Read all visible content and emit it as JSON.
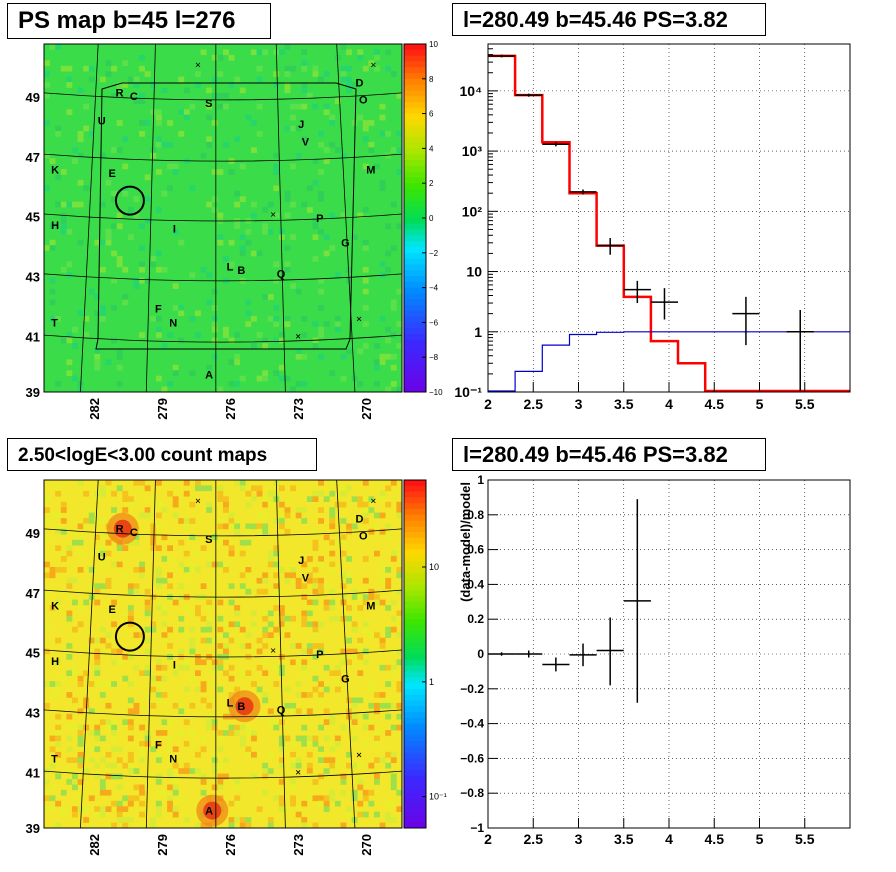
{
  "panels": {
    "ps_map_title": "PS map b=45 l=276",
    "count_map_title": "2.50<logE<3.00 count maps",
    "spectrum_title": "l=280.49 b=45.46 PS=3.82",
    "residual_title": "l=280.49 b=45.46 PS=3.82"
  },
  "colors": {
    "data": "#000000",
    "model": "#ff0000",
    "background_model": "#0000cc",
    "grid": "#000000"
  },
  "chart_data": [
    {
      "type": "heatmap",
      "title": "PS map b=45 l=276",
      "xticks": [
        "282",
        "279",
        "276",
        "273",
        "270"
      ],
      "yticks": [
        "49",
        "47",
        "45",
        "43",
        "41",
        "39"
      ],
      "colorbar": {
        "scale": "linear",
        "range": [
          -10,
          10
        ],
        "ticks": [
          "10",
          "8",
          "6",
          "4",
          "2",
          "0",
          "−2",
          "−4",
          "−6",
          "−8",
          "−10"
        ]
      },
      "sources": [
        "R",
        "C",
        "S",
        "D",
        "O",
        "U",
        "J",
        "V",
        "K",
        "E",
        "M",
        "H",
        "I",
        "P",
        "G",
        "L",
        "B",
        "Q",
        "F",
        "N",
        "T",
        "A"
      ]
    },
    {
      "type": "line",
      "title": "l=280.49 b=45.46 PS=3.82",
      "xlim": [
        2,
        6
      ],
      "yscale": "log",
      "ylim": [
        0.1,
        60000
      ],
      "xticks": [
        "2",
        "2.5",
        "3",
        "3.5",
        "4",
        "4.5",
        "5",
        "5.5"
      ],
      "yticks": [
        "10⁻¹",
        "1",
        "10",
        "10²",
        "10³",
        "10⁴"
      ],
      "grid": true,
      "series": [
        {
          "kind": "step",
          "color": "red",
          "edges": [
            2,
            2.3,
            2.6,
            2.9,
            3.2,
            3.5,
            3.8,
            4.1,
            4.4,
            6
          ],
          "values": [
            38000,
            8500,
            1400,
            200,
            27,
            3.8,
            0.7,
            0.3,
            0.1
          ]
        },
        {
          "kind": "step",
          "color": "blue",
          "edges": [
            2,
            2.3,
            2.6,
            2.9,
            3.2,
            3.5,
            3.8,
            4.1,
            4.4,
            6
          ],
          "values": [
            0.05,
            0.22,
            0.6,
            0.9,
            0.98,
            1.0,
            1.0,
            1.0,
            1.0
          ]
        },
        {
          "kind": "errorbar",
          "color": "black",
          "x": [
            2.15,
            2.45,
            2.75,
            3.05,
            3.35,
            3.65,
            3.95,
            4.85,
            5.45
          ],
          "y": [
            38000,
            8500,
            1300,
            210,
            27,
            5,
            3.1,
            2.0,
            1.0
          ],
          "xerr": [
            0.15,
            0.15,
            0.15,
            0.15,
            0.15,
            0.15,
            0.15,
            0.15,
            0.15
          ],
          "ylo": [
            36000,
            8000,
            1200,
            190,
            19,
            3,
            1.6,
            0.6,
            0.1
          ],
          "yhi": [
            40000,
            9000,
            1400,
            230,
            36,
            7,
            5.3,
            3.8,
            2.3
          ]
        }
      ]
    },
    {
      "type": "heatmap",
      "title": "2.50<logE<3.00 count maps",
      "xticks": [
        "282",
        "279",
        "276",
        "273",
        "270"
      ],
      "yticks": [
        "49",
        "47",
        "45",
        "43",
        "41",
        "39"
      ],
      "colorbar": {
        "scale": "log",
        "ticks": [
          "10",
          "1",
          "10⁻¹"
        ]
      },
      "sources": [
        "R",
        "C",
        "S",
        "D",
        "O",
        "U",
        "J",
        "V",
        "K",
        "E",
        "M",
        "H",
        "I",
        "P",
        "G",
        "L",
        "B",
        "Q",
        "F",
        "N",
        "T",
        "A"
      ]
    },
    {
      "type": "scatter",
      "title": "l=280.49 b=45.46 PS=3.82",
      "ylabel": "(data-model)/model",
      "xlim": [
        2,
        6
      ],
      "ylim": [
        -1,
        1
      ],
      "xticks": [
        "2",
        "2.5",
        "3",
        "3.5",
        "4",
        "4.5",
        "5",
        "5.5"
      ],
      "yticks": [
        "1",
        "0.8",
        "0.6",
        "0.4",
        "0.2",
        "0",
        "−0.2",
        "−0.4",
        "−0.6",
        "−0.8",
        "−1"
      ],
      "grid": true,
      "series": [
        {
          "kind": "errorbar",
          "color": "black",
          "x": [
            2.15,
            2.45,
            2.75,
            3.05,
            3.35,
            3.65
          ],
          "y": [
            0.0,
            0.0,
            -0.06,
            -0.005,
            0.02,
            0.305
          ],
          "xerr": [
            0.15,
            0.15,
            0.15,
            0.15,
            0.15,
            0.15
          ],
          "ylo": [
            -0.01,
            -0.02,
            -0.1,
            -0.07,
            -0.18,
            -0.28
          ],
          "yhi": [
            0.01,
            0.02,
            -0.02,
            0.06,
            0.21,
            0.89
          ]
        }
      ]
    }
  ]
}
